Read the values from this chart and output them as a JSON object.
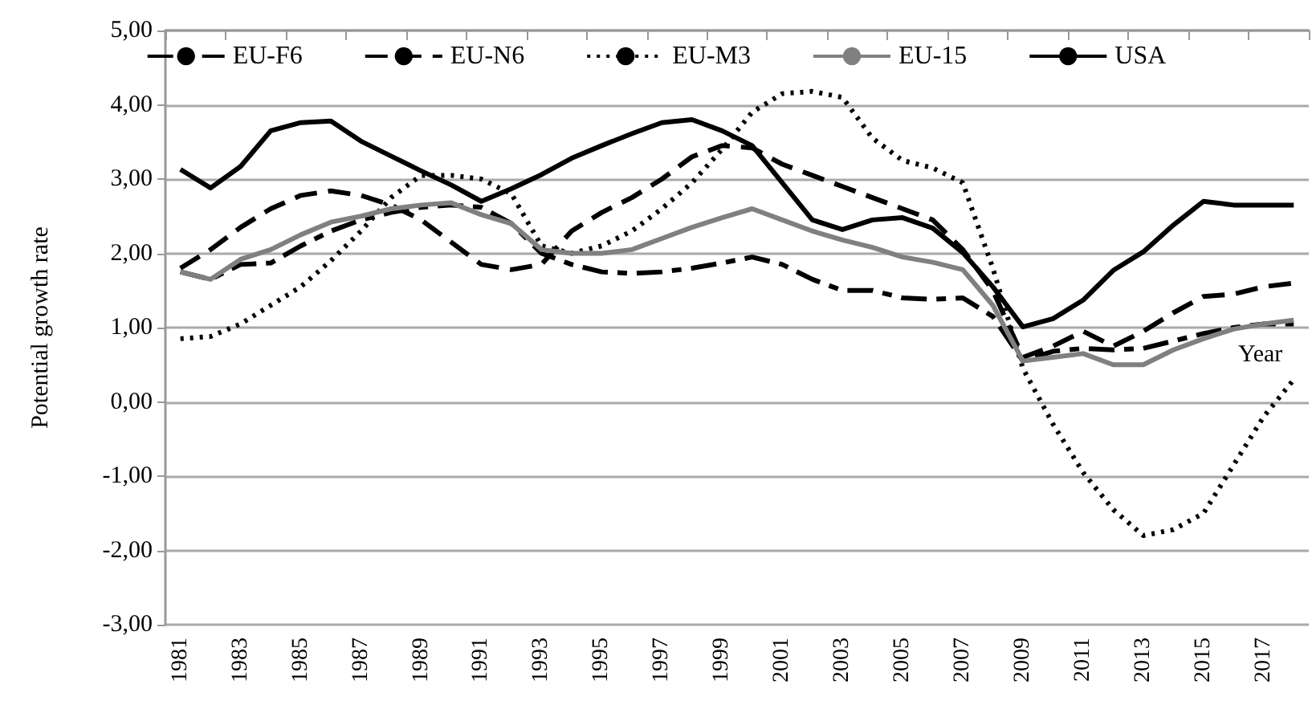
{
  "chart_data": {
    "type": "line",
    "xlabel": "Year",
    "ylabel": "Potential growth rate",
    "categories": [
      "1981",
      null,
      "1983",
      null,
      "1985",
      null,
      "1987",
      null,
      "1989",
      null,
      "1991",
      null,
      "1993",
      null,
      "1995",
      null,
      "1997",
      null,
      "1999",
      null,
      "2001",
      null,
      "2003",
      null,
      "2005",
      null,
      "2007",
      null,
      "2009",
      null,
      "2011",
      null,
      "2013",
      null,
      "2015",
      null,
      "2017",
      null
    ],
    "ylim": [
      -3,
      5
    ],
    "yticks": [
      {
        "value": -3,
        "label": "-3,00"
      },
      {
        "value": -2,
        "label": "-2,00"
      },
      {
        "value": -1,
        "label": "-1,00"
      },
      {
        "value": 0,
        "label": "0,00"
      },
      {
        "value": 1,
        "label": "1,00"
      },
      {
        "value": 2,
        "label": "2,00"
      },
      {
        "value": 3,
        "label": "3,00"
      },
      {
        "value": 4,
        "label": "4,00"
      },
      {
        "value": 5,
        "label": "5,00"
      }
    ],
    "grid": "y",
    "legend": "top",
    "marker": "none",
    "series": [
      {
        "name": "EU-F6",
        "color": "#000000",
        "line_style": "dashdot",
        "values": [
          1.75,
          1.65,
          1.85,
          1.87,
          2.1,
          2.3,
          2.45,
          2.55,
          2.62,
          2.65,
          2.62,
          2.4,
          2.0,
          1.85,
          1.75,
          1.73,
          1.75,
          1.8,
          1.87,
          1.95,
          1.85,
          1.65,
          1.5,
          1.5,
          1.4,
          1.38,
          1.4,
          1.15,
          0.55,
          0.68,
          0.72,
          0.7,
          0.72,
          0.82,
          0.92,
          1.0,
          1.05,
          1.05
        ]
      },
      {
        "name": "EU-N6",
        "color": "#000000",
        "line_style": "dashed",
        "values": [
          1.8,
          2.05,
          2.35,
          2.6,
          2.78,
          2.84,
          2.78,
          2.65,
          2.45,
          2.15,
          1.85,
          1.78,
          1.85,
          2.3,
          2.55,
          2.75,
          3.0,
          3.3,
          3.45,
          3.42,
          3.2,
          3.05,
          2.9,
          2.75,
          2.6,
          2.45,
          2.05,
          1.5,
          0.6,
          0.75,
          0.95,
          0.75,
          0.95,
          1.2,
          1.42,
          1.45,
          1.55,
          1.6
        ]
      },
      {
        "name": "EU-M3",
        "color": "#000000",
        "line_style": "dotted",
        "values": [
          0.85,
          0.88,
          1.05,
          1.3,
          1.55,
          1.9,
          2.3,
          2.75,
          3.05,
          3.05,
          3.0,
          2.8,
          2.1,
          2.0,
          2.1,
          2.3,
          2.6,
          2.95,
          3.4,
          3.9,
          4.15,
          4.18,
          4.1,
          3.55,
          3.25,
          3.15,
          2.95,
          1.8,
          0.45,
          -0.3,
          -0.95,
          -1.45,
          -1.8,
          -1.72,
          -1.5,
          -0.85,
          -0.2,
          0.3
        ]
      },
      {
        "name": "EU-15",
        "color": "#808080",
        "line_style": "solid",
        "values": [
          1.75,
          1.65,
          1.92,
          2.05,
          2.25,
          2.42,
          2.5,
          2.6,
          2.65,
          2.68,
          2.52,
          2.4,
          2.05,
          2.0,
          2.0,
          2.05,
          2.2,
          2.35,
          2.48,
          2.6,
          2.45,
          2.3,
          2.18,
          2.08,
          1.95,
          1.88,
          1.78,
          1.3,
          0.55,
          0.6,
          0.65,
          0.5,
          0.5,
          0.7,
          0.85,
          0.98,
          1.05,
          1.1
        ]
      },
      {
        "name": "USA",
        "color": "#000000",
        "line_style": "solid",
        "values": [
          3.13,
          2.88,
          3.17,
          3.65,
          3.76,
          3.78,
          3.51,
          3.31,
          3.11,
          2.92,
          2.7,
          2.87,
          3.06,
          3.28,
          3.45,
          3.61,
          3.76,
          3.8,
          3.65,
          3.45,
          2.95,
          2.45,
          2.32,
          2.45,
          2.48,
          2.34,
          2.01,
          1.55,
          1.01,
          1.12,
          1.37,
          1.77,
          2.02,
          2.38,
          2.7,
          2.65,
          2.65,
          2.65
        ]
      }
    ]
  }
}
